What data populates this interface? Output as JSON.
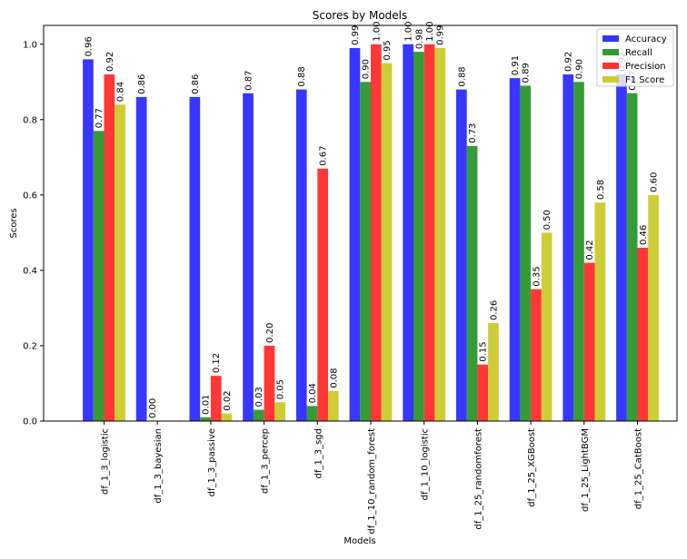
{
  "chart_data": {
    "type": "bar",
    "title": "Scores by Models",
    "xlabel": "Models",
    "ylabel": "Scores",
    "ylim": [
      0,
      1.05
    ],
    "yticks": [
      "0.0",
      "0.2",
      "0.4",
      "0.6",
      "0.8",
      "1.0"
    ],
    "ytick_values": [
      0,
      0.2,
      0.4,
      0.6,
      0.8,
      1.0
    ],
    "legend_position": "top-right",
    "grid": false,
    "categories": [
      "df_1_3_logistic",
      "df_1_3_bayesian",
      "df_1_3_passive",
      "df_1_3_percep",
      "df_1_3_sgd",
      "df_1_10_random_forest",
      "df_1_10_logistic",
      "df_1_25_randomforest",
      "df_1_25_XGBoost",
      "df_1_25_LightBGM",
      "df_1_25_CatBoost"
    ],
    "series": [
      {
        "name": "Accuracy",
        "color": "#3333ff",
        "values": [
          0.96,
          0.86,
          0.86,
          0.87,
          0.88,
          0.99,
          1.0,
          0.88,
          0.91,
          0.92,
          0.92
        ],
        "labels": [
          "0.96",
          "0.86",
          "0.86",
          "0.87",
          "0.88",
          "0.99",
          "1.00",
          "0.88",
          "0.91",
          "0.92",
          "0.92"
        ]
      },
      {
        "name": "Recall",
        "color": "#339933",
        "values": [
          0.77,
          0.0,
          0.01,
          0.03,
          0.04,
          0.9,
          0.98,
          0.73,
          0.89,
          0.9,
          0.87
        ],
        "labels": [
          "0.77",
          "0.00",
          "0.01",
          "0.03",
          "0.04",
          "0.90",
          "0.98",
          "0.73",
          "0.89",
          "0.90",
          "0.87"
        ]
      },
      {
        "name": "Precision",
        "color": "#ff3333",
        "values": [
          0.92,
          0.0,
          0.12,
          0.2,
          0.67,
          1.0,
          1.0,
          0.15,
          0.35,
          0.42,
          0.46
        ],
        "labels": [
          "0.92",
          "",
          "0.12",
          "0.20",
          "0.67",
          "1.00",
          "1.00",
          "0.15",
          "0.35",
          "0.42",
          "0.46"
        ]
      },
      {
        "name": "F1 Score",
        "color": "#cccc33",
        "values": [
          0.84,
          0.0,
          0.02,
          0.05,
          0.08,
          0.95,
          0.99,
          0.26,
          0.5,
          0.58,
          0.6
        ],
        "labels": [
          "0.84",
          "",
          "0.02",
          "0.05",
          "0.08",
          "0.95",
          "0.99",
          "0.26",
          "0.50",
          "0.58",
          "0.60"
        ]
      }
    ]
  }
}
